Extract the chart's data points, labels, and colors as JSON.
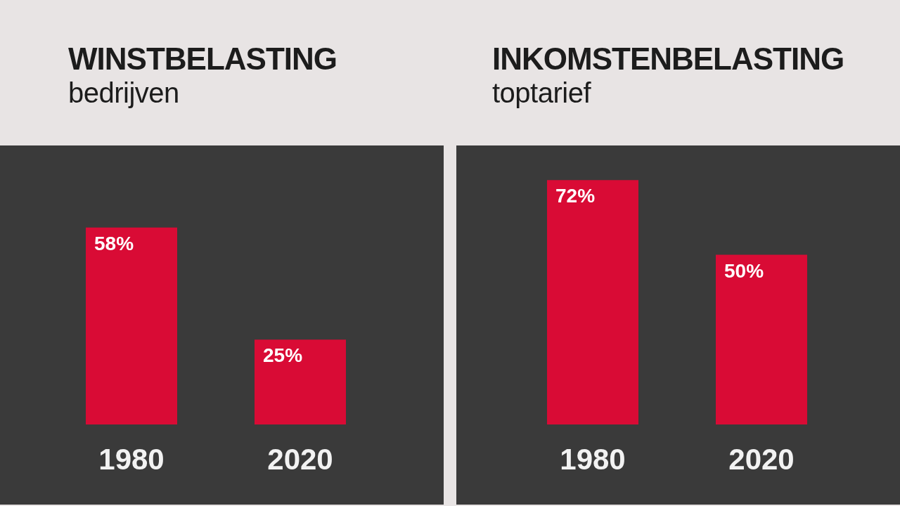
{
  "chart_data": [
    {
      "type": "bar",
      "title": "WINSTBELASTING",
      "subtitle": "bedrijven",
      "categories": [
        "1980",
        "2020"
      ],
      "values": [
        58,
        25
      ],
      "color": "#d90b35",
      "value_labels": [
        "58%",
        "25%"
      ],
      "tick_labels": "x"
    },
    {
      "type": "bar",
      "title": "INKOMSTENBELASTING",
      "subtitle": "toptarief",
      "categories": [
        "1980",
        "2020"
      ],
      "values": [
        72,
        50
      ],
      "color": "#d90b35",
      "value_labels": [
        "72%",
        "50%"
      ],
      "tick_labels": "x"
    }
  ]
}
